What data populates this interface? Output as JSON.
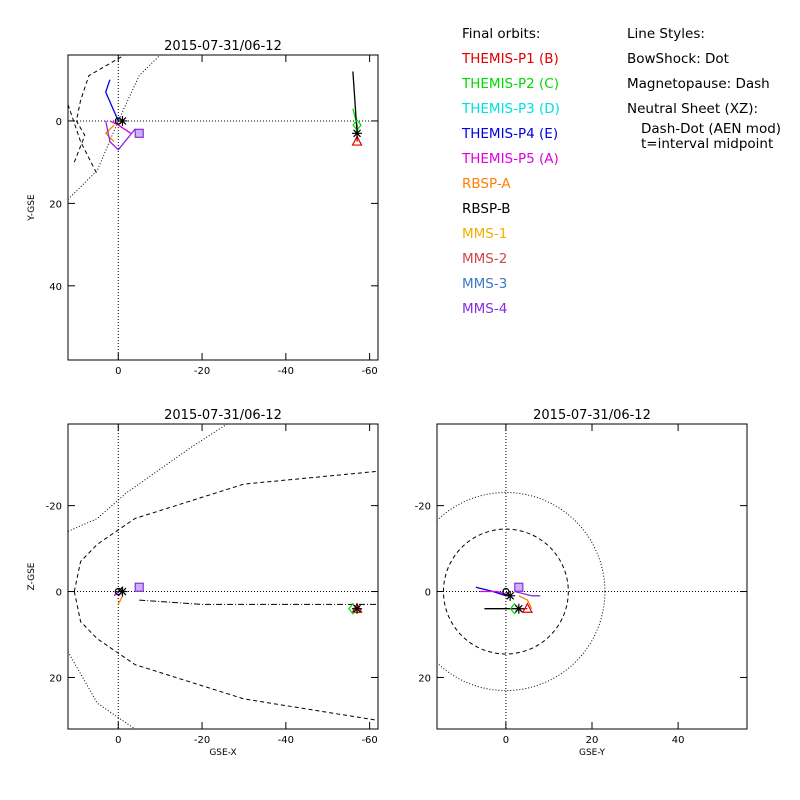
{
  "legend": {
    "orbits_title": "Final orbits:",
    "styles_title": "Line Styles:",
    "spacecraft": [
      {
        "label": "THEMIS-P1 (B)",
        "color": "#e00000"
      },
      {
        "label": "THEMIS-P2 (C)",
        "color": "#00d800"
      },
      {
        "label": "THEMIS-P3 (D)",
        "color": "#00e0e0"
      },
      {
        "label": "THEMIS-P4 (E)",
        "color": "#0000e0"
      },
      {
        "label": "THEMIS-P5 (A)",
        "color": "#e000e0"
      },
      {
        "label": "RBSP-A",
        "color": "#ff8000"
      },
      {
        "label": "RBSP-B",
        "color": "#000000"
      },
      {
        "label": "MMS-1",
        "color": "#f0b000"
      },
      {
        "label": "MMS-2",
        "color": "#d04848"
      },
      {
        "label": "MMS-3",
        "color": "#3c78c8"
      },
      {
        "label": "MMS-4",
        "color": "#8a2be2"
      }
    ],
    "styles": {
      "bowshock": "BowShock: Dot",
      "magnetopause": "Magnetopause: Dash",
      "neutral_sheet": "Neutral Sheet (XZ):",
      "neutral_sheet_detail": "Dash-Dot (AEN mod)",
      "midpoint": "t=interval midpoint"
    }
  },
  "chart_data": [
    {
      "type": "line",
      "plane": "XY",
      "title": "2015-07-31/06-12",
      "xlabel": "",
      "ylabel": "Y-GSE",
      "xlim": [
        12,
        -62
      ],
      "ylim": [
        -16,
        58
      ],
      "xticks": [
        0,
        -20,
        -40,
        -60
      ],
      "yticks": [
        0,
        20,
        40
      ],
      "boundaries": {
        "bowshock": [
          [
            12,
            19
          ],
          [
            5,
            12
          ],
          [
            0,
            0
          ],
          [
            -5,
            -11
          ],
          [
            -12,
            -18
          ],
          [
            -20,
            -25
          ],
          [
            -32,
            -35
          ],
          [
            -40,
            -42
          ]
        ],
        "magnetopause": [
          [
            10.5,
            10
          ],
          [
            8,
            3.5
          ],
          [
            10,
            0
          ],
          [
            9,
            -5
          ],
          [
            7,
            -11
          ],
          [
            -10,
            -21
          ],
          [
            -40,
            -27
          ],
          [
            -62,
            -30
          ]
        ],
        "upper_clip": [
          [
            12,
            19
          ],
          [
            8,
            17
          ]
        ]
      },
      "series": [
        {
          "name": "THEMIS-P1 (B)",
          "points": [
            [
              -57,
              1
            ],
            [
              -57,
              5
            ]
          ]
        },
        {
          "name": "THEMIS-P2 (C)",
          "points": [
            [
              -56,
              -3
            ],
            [
              -57,
              1
            ]
          ]
        },
        {
          "name": "THEMIS-P4 (E)",
          "points": [
            [
              2,
              -10
            ],
            [
              3,
              -7
            ],
            [
              0,
              0
            ]
          ]
        },
        {
          "name": "THEMIS-P5 (A)",
          "points": [
            [
              2,
              0
            ],
            [
              0,
              1
            ],
            [
              -3,
              3
            ]
          ]
        },
        {
          "name": "RBSP-A",
          "points": [
            [
              1,
              1
            ],
            [
              3,
              3
            ],
            [
              1,
              5
            ]
          ]
        },
        {
          "name": "RBSP-B",
          "points": [
            [
              -56,
              -12
            ],
            [
              -57,
              3
            ]
          ]
        },
        {
          "name": "MMS-4",
          "points": [
            [
              3,
              0
            ],
            [
              2,
              5
            ],
            [
              0,
              7
            ],
            [
              -4,
              2
            ],
            [
              -5,
              3
            ]
          ]
        }
      ],
      "markers": [
        {
          "name": "THEMIS-P1 (B)",
          "symbol": "triangle",
          "x": -57,
          "y": 5
        },
        {
          "name": "THEMIS-P2 (C)",
          "symbol": "diamond",
          "x": -57,
          "y": 1
        },
        {
          "name": "RBSP-B",
          "symbol": "asterisk",
          "x": -57,
          "y": 3
        },
        {
          "name": "MMS-4",
          "symbol": "square",
          "x": -5,
          "y": 3
        },
        {
          "name": "RBSP-B",
          "symbol": "asterisk",
          "x": -1,
          "y": 0
        }
      ]
    },
    {
      "type": "line",
      "plane": "XZ",
      "title": "2015-07-31/06-12",
      "xlabel": "GSE-X",
      "ylabel": "Z-GSE",
      "xlim": [
        12,
        -62
      ],
      "ylim": [
        -39,
        32
      ],
      "xticks": [
        0,
        -20,
        -40,
        -60
      ],
      "yticks": [
        -20,
        0,
        20
      ],
      "boundaries": {
        "bowshock": [
          [
            12,
            14
          ],
          [
            5,
            26
          ],
          [
            -4,
            32
          ],
          [
            12,
            -14
          ],
          [
            5,
            -17
          ],
          [
            -2,
            -23
          ],
          [
            -18,
            -34
          ],
          [
            -26,
            -39
          ]
        ],
        "magnetopause": [
          [
            10.5,
            0
          ],
          [
            9,
            7
          ],
          [
            5,
            11
          ],
          [
            -4,
            17
          ],
          [
            -30,
            25
          ],
          [
            -62,
            30
          ],
          [
            9,
            -7
          ],
          [
            5,
            -11
          ],
          [
            -4,
            -17
          ],
          [
            -30,
            -25
          ],
          [
            -62,
            -28
          ]
        ],
        "neutral_sheet": [
          [
            -5,
            2
          ],
          [
            -20,
            3
          ],
          [
            -62,
            3
          ]
        ]
      },
      "series": [
        {
          "name": "THEMIS-P4 (E)",
          "points": [
            [
              -1,
              0
            ],
            [
              0,
              1
            ]
          ]
        },
        {
          "name": "THEMIS-P5 (A)",
          "points": [
            [
              1,
              1
            ],
            [
              0,
              0
            ]
          ]
        },
        {
          "name": "RBSP-A",
          "points": [
            [
              0,
              3
            ],
            [
              -1,
              1
            ]
          ]
        },
        {
          "name": "RBSP-B",
          "points": [
            [
              -1,
              -1
            ],
            [
              0,
              0
            ]
          ]
        }
      ],
      "markers": [
        {
          "name": "THEMIS-P1 (B)",
          "symbol": "triangle",
          "x": -57,
          "y": 4
        },
        {
          "name": "THEMIS-P2 (C)",
          "symbol": "diamond",
          "x": -56,
          "y": 4
        },
        {
          "name": "RBSP-B",
          "symbol": "asterisk",
          "x": -57,
          "y": 4
        },
        {
          "name": "MMS-4",
          "symbol": "square",
          "x": -5,
          "y": -1
        },
        {
          "name": "RBSP-B",
          "symbol": "asterisk",
          "x": -1,
          "y": 0
        }
      ]
    },
    {
      "type": "line",
      "plane": "YZ",
      "title": "2015-07-31/06-12",
      "xlabel": "GSE-Y",
      "ylabel": "",
      "xlim": [
        -16,
        56
      ],
      "ylim": [
        -39,
        32
      ],
      "xticks": [
        0,
        20,
        40
      ],
      "yticks": [
        -20,
        0,
        20
      ],
      "boundaries": {
        "bowshock_radius": 23,
        "magnetopause_radius": 14.5
      },
      "series": [
        {
          "name": "THEMIS-P1 (B)",
          "points": [
            [
              4,
              4
            ],
            [
              5,
              4
            ]
          ]
        },
        {
          "name": "THEMIS-P4 (E)",
          "points": [
            [
              -7,
              -1
            ],
            [
              -3,
              0
            ],
            [
              0,
              1
            ]
          ]
        },
        {
          "name": "THEMIS-P5 (A)",
          "points": [
            [
              -6,
              0
            ],
            [
              -2,
              0
            ],
            [
              1,
              1
            ]
          ]
        },
        {
          "name": "RBSP-A",
          "points": [
            [
              3,
              1
            ],
            [
              5,
              2
            ],
            [
              6,
              4
            ]
          ]
        },
        {
          "name": "RBSP-B",
          "points": [
            [
              -5,
              4
            ],
            [
              3,
              4
            ]
          ]
        },
        {
          "name": "MMS-4",
          "points": [
            [
              2,
              0
            ],
            [
              6,
              1
            ],
            [
              8,
              1
            ]
          ]
        }
      ],
      "markers": [
        {
          "name": "THEMIS-P1 (B)",
          "symbol": "triangle",
          "x": 5,
          "y": 4
        },
        {
          "name": "THEMIS-P2 (C)",
          "symbol": "diamond",
          "x": 2,
          "y": 4
        },
        {
          "name": "RBSP-B",
          "symbol": "asterisk",
          "x": 3,
          "y": 4
        },
        {
          "name": "MMS-4",
          "symbol": "square",
          "x": 3,
          "y": -1
        },
        {
          "name": "RBSP-B",
          "symbol": "asterisk",
          "x": 1,
          "y": 1
        }
      ]
    }
  ]
}
